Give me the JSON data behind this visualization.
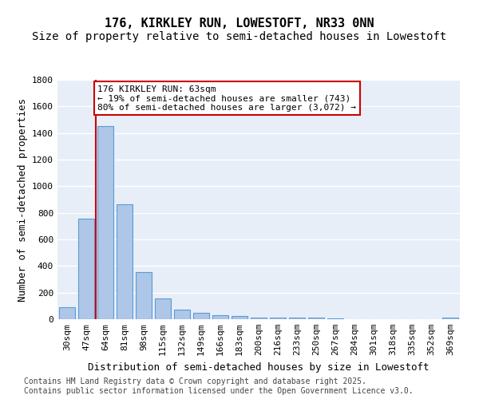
{
  "title_line1": "176, KIRKLEY RUN, LOWESTOFT, NR33 0NN",
  "title_line2": "Size of property relative to semi-detached houses in Lowestoft",
  "xlabel": "Distribution of semi-detached houses by size in Lowestoft",
  "ylabel": "Number of semi-detached properties",
  "categories": [
    "30sqm",
    "47sqm",
    "64sqm",
    "81sqm",
    "98sqm",
    "115sqm",
    "132sqm",
    "149sqm",
    "166sqm",
    "183sqm",
    "200sqm",
    "216sqm",
    "233sqm",
    "250sqm",
    "267sqm",
    "284sqm",
    "301sqm",
    "318sqm",
    "335sqm",
    "352sqm",
    "369sqm"
  ],
  "values": [
    88,
    755,
    1450,
    865,
    355,
    155,
    70,
    50,
    30,
    22,
    14,
    10,
    10,
    10,
    8,
    0,
    0,
    0,
    0,
    0,
    13
  ],
  "bar_color": "#aec6e8",
  "bar_edge_color": "#5b9bd5",
  "background_color": "#e8eef7",
  "grid_color": "#ffffff",
  "annotation_text": "176 KIRKLEY RUN: 63sqm\n← 19% of semi-detached houses are smaller (743)\n80% of semi-detached houses are larger (3,072) →",
  "annotation_box_color": "#ffffff",
  "annotation_border_color": "#cc0000",
  "red_line_index": 1.5,
  "ylim": [
    0,
    1800
  ],
  "yticks": [
    0,
    200,
    400,
    600,
    800,
    1000,
    1200,
    1400,
    1600,
    1800
  ],
  "footer_text": "Contains HM Land Registry data © Crown copyright and database right 2025.\nContains public sector information licensed under the Open Government Licence v3.0.",
  "title_fontsize": 11,
  "subtitle_fontsize": 10,
  "axis_label_fontsize": 9,
  "tick_fontsize": 8,
  "annotation_fontsize": 8,
  "footer_fontsize": 7
}
